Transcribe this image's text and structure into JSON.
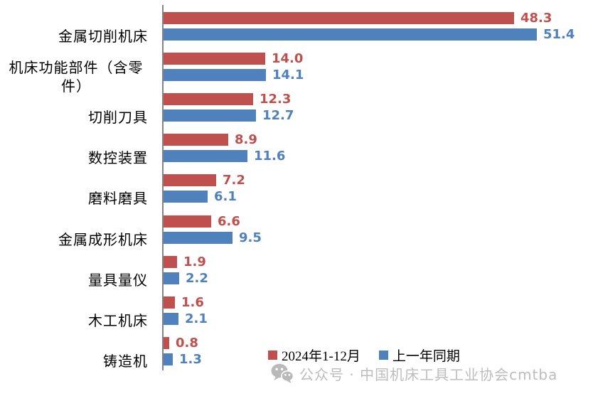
{
  "chart_data": {
    "type": "bar",
    "orientation": "horizontal",
    "title": "",
    "categories": [
      "金属切削机床",
      "机床功能部件（含零件）",
      "切削刀具",
      "数控装置",
      "磨料磨具",
      "金属成形机床",
      "量具量仪",
      "木工机床",
      "铸造机"
    ],
    "series": [
      {
        "name": "2024年1-12月",
        "color": "#C0504D",
        "values": [
          48.3,
          14.0,
          12.3,
          8.9,
          7.2,
          6.6,
          1.9,
          1.6,
          0.8
        ]
      },
      {
        "name": "上一年同期",
        "color": "#4F81BD",
        "values": [
          51.4,
          14.1,
          12.7,
          11.6,
          6.1,
          9.5,
          2.2,
          2.1,
          1.3
        ]
      }
    ],
    "value_axis": {
      "min": 0,
      "max": 51.4
    },
    "value_format": "0.0",
    "data_labels": true,
    "grid": false,
    "legend_position": "bottom-right"
  },
  "legend": {
    "items": [
      {
        "label": "2024年1-12月",
        "color": "#C0504D"
      },
      {
        "label": "上一年同期",
        "color": "#4F81BD"
      }
    ]
  },
  "footer": {
    "text": "公众号 · 中国机床工具工业协会cmtba",
    "icon": "wechat-icon",
    "color": "#BDBDBD"
  },
  "colors": {
    "axis": "#848484",
    "background": "#FFFFFF",
    "category_label": "#000000"
  }
}
